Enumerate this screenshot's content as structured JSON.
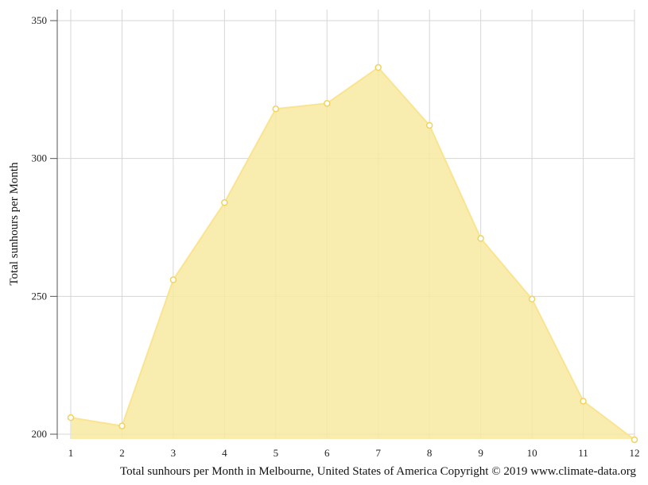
{
  "chart_data": {
    "type": "area",
    "x": [
      1,
      2,
      3,
      4,
      5,
      6,
      7,
      8,
      9,
      10,
      11,
      12
    ],
    "x_tick_labels": [
      "1",
      "2",
      "3",
      "4",
      "5",
      "6",
      "7",
      "8",
      "9",
      "10",
      "11",
      "12"
    ],
    "series": [
      {
        "values": [
          206,
          203,
          256,
          284,
          318,
          320,
          333,
          312,
          271,
          249,
          212,
          198
        ]
      }
    ],
    "ylim": [
      200,
      350
    ],
    "y_ticks": [
      200,
      250,
      300,
      350
    ],
    "ylabel": "Total sunhours per Month",
    "xlabel": "Total sunhours per Month in Melbourne, United States of America Copyright © 2019 www.climate-data.org",
    "grid": true,
    "colors": {
      "fill": "#f8e9a1",
      "line": "#f9e48f",
      "marker_stroke": "#f1d35b",
      "grid": "#d6d6d6",
      "axis": "#555555"
    }
  }
}
